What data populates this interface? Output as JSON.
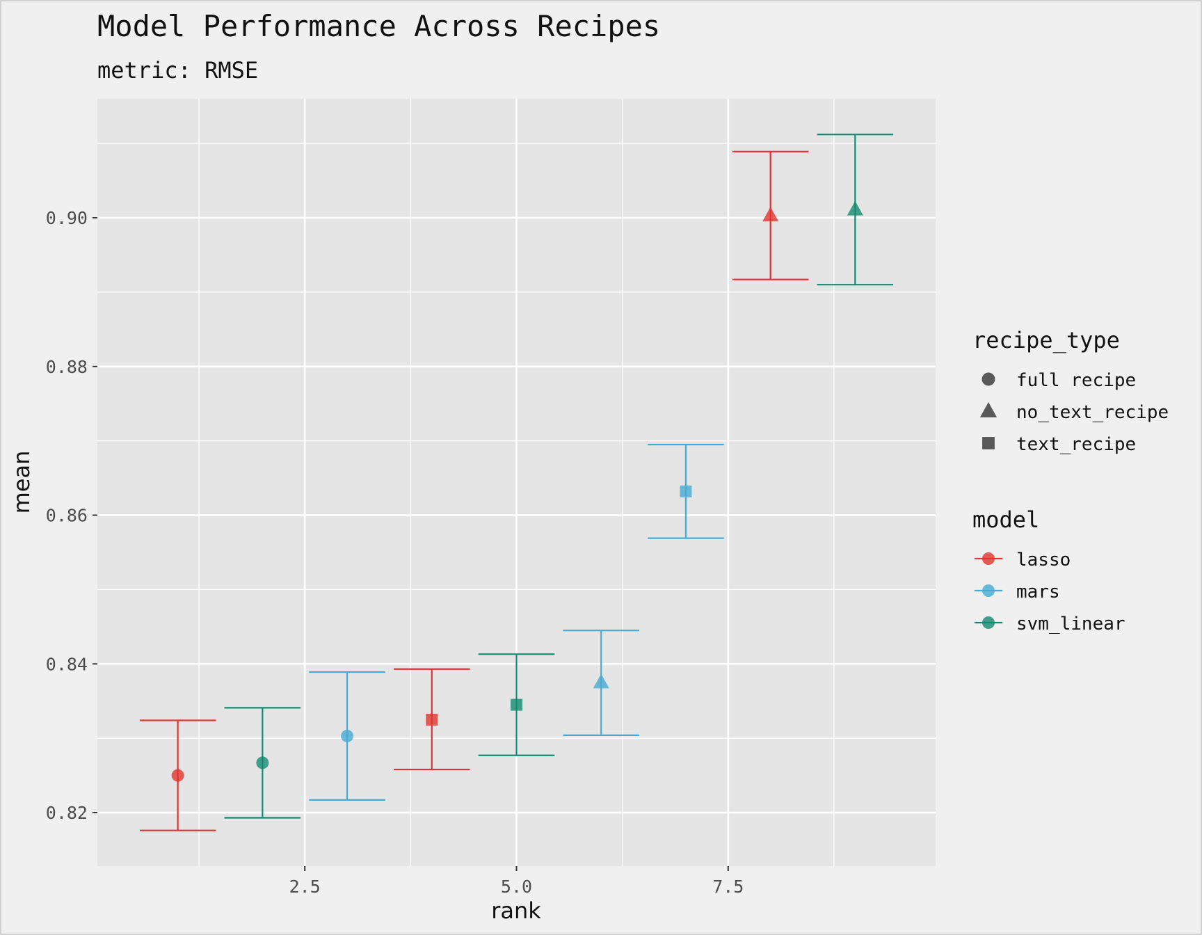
{
  "chart_data": {
    "type": "scatter",
    "title": "Model Performance Across Recipes",
    "subtitle": "metric: RMSE",
    "xlabel": "rank",
    "ylabel": "mean",
    "xlim": [
      0.05,
      9.95
    ],
    "ylim": [
      0.8128,
      0.916
    ],
    "x_ticks": [
      2.5,
      5.0,
      7.5
    ],
    "x_tick_labels": [
      "2.5",
      "5.0",
      "7.5"
    ],
    "y_ticks": [
      0.82,
      0.84,
      0.86,
      0.88,
      0.9
    ],
    "y_tick_labels": [
      "0.82",
      "0.84",
      "0.86",
      "0.88",
      "0.90"
    ],
    "grid": true,
    "legend_position": "right",
    "errorbar_halfwidth": 0.45,
    "points": [
      {
        "rank": 1,
        "mean": 0.825,
        "lower": 0.8176,
        "upper": 0.8324,
        "model": "lasso",
        "recipe_type": "full recipe"
      },
      {
        "rank": 2,
        "mean": 0.8267,
        "lower": 0.8193,
        "upper": 0.8341,
        "model": "svm_linear",
        "recipe_type": "full recipe"
      },
      {
        "rank": 3,
        "mean": 0.8303,
        "lower": 0.8217,
        "upper": 0.8389,
        "model": "mars",
        "recipe_type": "full recipe"
      },
      {
        "rank": 4,
        "mean": 0.8325,
        "lower": 0.8258,
        "upper": 0.8393,
        "model": "lasso",
        "recipe_type": "text_recipe"
      },
      {
        "rank": 5,
        "mean": 0.8345,
        "lower": 0.8277,
        "upper": 0.8413,
        "model": "svm_linear",
        "recipe_type": "text_recipe"
      },
      {
        "rank": 6,
        "mean": 0.8375,
        "lower": 0.8304,
        "upper": 0.8445,
        "model": "mars",
        "recipe_type": "no_text_recipe"
      },
      {
        "rank": 7,
        "mean": 0.8632,
        "lower": 0.8569,
        "upper": 0.8695,
        "model": "mars",
        "recipe_type": "text_recipe"
      },
      {
        "rank": 8,
        "mean": 0.9003,
        "lower": 0.8917,
        "upper": 0.9089,
        "model": "lasso",
        "recipe_type": "no_text_recipe"
      },
      {
        "rank": 9,
        "mean": 0.9011,
        "lower": 0.891,
        "upper": 0.9112,
        "model": "svm_linear",
        "recipe_type": "no_text_recipe"
      }
    ],
    "legends": [
      {
        "title": "recipe_type",
        "kind": "shape",
        "items": [
          {
            "label": "full recipe",
            "shape": "circle"
          },
          {
            "label": "no_text_recipe",
            "shape": "triangle"
          },
          {
            "label": "text_recipe",
            "shape": "square"
          }
        ]
      },
      {
        "title": "model",
        "kind": "color",
        "items": [
          {
            "label": "lasso",
            "color": "#e0342f"
          },
          {
            "label": "mars",
            "color": "#46abd3"
          },
          {
            "label": "svm_linear",
            "color": "#138b71"
          }
        ]
      }
    ],
    "colors": {
      "lasso": "#e0342f",
      "mars": "#46abd3",
      "svm_linear": "#138b71"
    },
    "shapes": {
      "full recipe": "circle",
      "no_text_recipe": "triangle",
      "text_recipe": "square"
    }
  }
}
